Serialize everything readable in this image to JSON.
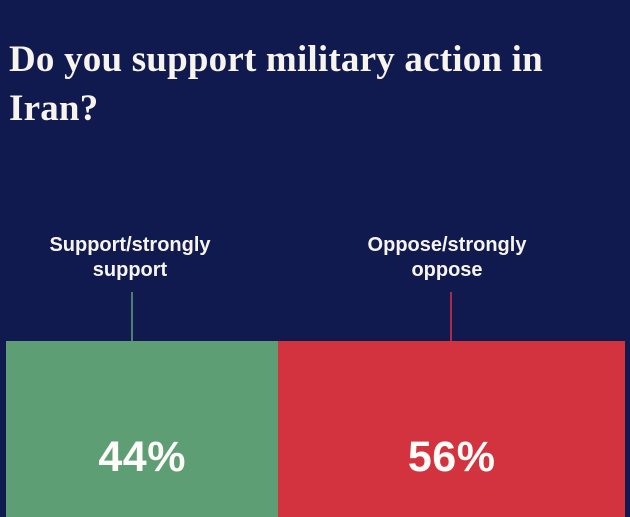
{
  "title": "Do you support military action in Iran?",
  "segments": [
    {
      "label": "Support/strongly support",
      "value": 44,
      "value_label": "44%",
      "bar_color": "#5d9e74",
      "connector_color": "#4b7f70"
    },
    {
      "label": "Oppose/strongly oppose",
      "value": 56,
      "value_label": "56%",
      "bar_color": "#d3333f",
      "connector_color": "#aa2b49"
    }
  ],
  "colors": {
    "background": "#111a4e",
    "text": "#f7f4ed",
    "value_text": "#fdfcf8"
  },
  "chart_data": {
    "type": "bar",
    "subtype": "stacked-horizontal-single-row",
    "title": "Do you support military action in Iran?",
    "categories": [
      "Support/strongly support",
      "Oppose/strongly oppose"
    ],
    "values": [
      44,
      56
    ],
    "value_unit": "%",
    "data_labels": [
      "44%",
      "56%"
    ],
    "series_colors": [
      "#5d9e74",
      "#d3333f"
    ],
    "xlabel": "",
    "ylabel": "",
    "xlim": [
      0,
      100
    ],
    "grid": false,
    "legend_position": "none",
    "annotation_style": "category labels above bar connected by vertical leader lines"
  }
}
